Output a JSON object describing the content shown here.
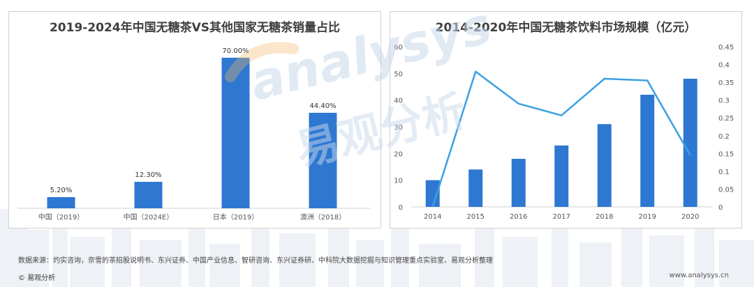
{
  "colors": {
    "bar": "#2e78d2",
    "line": "#3aa0e3",
    "axis_text": "#555555",
    "border": "#d0d0d0"
  },
  "chart_data": [
    {
      "type": "bar",
      "title": "2019-2024年中国无糖茶VS其他国家无糖茶销量占比",
      "categories": [
        "中国（2019）",
        "中国（2024E）",
        "日本（2019）",
        "澳洲（2018）"
      ],
      "values": [
        5.2,
        12.3,
        70.0,
        44.4
      ],
      "data_labels": [
        "5.20%",
        "12.30%",
        "70.00%",
        "44.40%"
      ],
      "ylim": [
        0,
        80
      ],
      "grid": false
    },
    {
      "type": "bar+line",
      "title": "2014-2020年中国无糖茶饮料市场规模（亿元）",
      "categories": [
        "2014",
        "2015",
        "2016",
        "2017",
        "2018",
        "2019",
        "2020"
      ],
      "series": [
        {
          "values": [
            10,
            14,
            18,
            23,
            31,
            42,
            48
          ],
          "axis": "left",
          "type": "bar"
        },
        {
          "values": [
            0,
            0.38,
            0.29,
            0.257,
            0.36,
            0.355,
            0.145
          ],
          "axis": "right",
          "type": "line"
        }
      ],
      "y_left": {
        "ylim": [
          0,
          60
        ],
        "ticks": [
          "0",
          "10",
          "20",
          "30",
          "40",
          "50",
          "60"
        ]
      },
      "y_right": {
        "ylim": [
          0,
          0.45
        ],
        "ticks": [
          "0",
          "0.05",
          "0.1",
          "0.15",
          "0.2",
          "0.25",
          "0.3",
          "0.35",
          "0.4",
          "0.45"
        ]
      },
      "grid": false
    }
  ],
  "watermark": {
    "text": "analysys",
    "cn_text": "易观分析"
  },
  "footer": {
    "source": "数据来源：灼实咨询，奈雪的茶招股说明书、东兴证券、中国产业信息、智研咨询、东兴证券研、中科院大数据挖掘与知识管理重点实验室、易观分析整理",
    "copyright": "© 易观分析",
    "website": "www.analysys.cn"
  }
}
